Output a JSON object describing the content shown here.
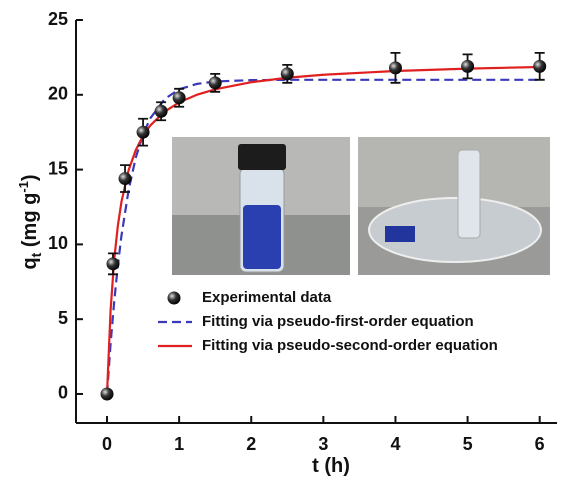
{
  "chart_data": {
    "type": "scatter",
    "xlabel": "t (h)",
    "ylabel": {
      "base": "q",
      "sub": "t",
      "unit": " (mg g",
      "sup": "-1",
      "close": ")"
    },
    "xlim": [
      -0.43,
      6.24
    ],
    "ylim": [
      -1.94,
      25
    ],
    "xticks": [
      0,
      1,
      2,
      3,
      4,
      5,
      6
    ],
    "yticks": [
      0,
      5,
      10,
      15,
      20,
      25
    ],
    "series": [
      {
        "name": "Experimental data",
        "kind": "points",
        "color": "#111111",
        "x": [
          0,
          0.083,
          0.25,
          0.5,
          0.75,
          1,
          1.5,
          2.5,
          4,
          5,
          6
        ],
        "values": [
          0,
          8.7,
          14.4,
          17.5,
          18.9,
          19.8,
          20.8,
          21.4,
          21.8,
          21.9,
          21.9
        ],
        "errors": [
          0,
          0.7,
          0.9,
          0.9,
          0.6,
          0.6,
          0.6,
          0.6,
          1.0,
          0.8,
          0.9
        ]
      },
      {
        "name": "Fitting via pseudo-first-order equation",
        "kind": "dashed",
        "color": "#3a3ab8",
        "x": [
          0,
          0.05,
          0.1,
          0.15,
          0.2,
          0.3,
          0.4,
          0.5,
          0.6,
          0.8,
          1,
          1.25,
          1.5,
          2,
          2.5,
          3,
          4,
          5,
          6
        ],
        "values": [
          0,
          3.38,
          6.19,
          8.57,
          10.57,
          13.65,
          15.82,
          17.35,
          18.43,
          19.72,
          20.37,
          20.73,
          20.89,
          20.98,
          21,
          21,
          21,
          21,
          21
        ]
      },
      {
        "name": "Fitting via pseudo-second-order equation",
        "kind": "solid",
        "color": "#e02020",
        "x": [
          0,
          0.05,
          0.1,
          0.15,
          0.2,
          0.3,
          0.4,
          0.5,
          0.6,
          0.8,
          1,
          1.25,
          1.5,
          2,
          2.5,
          3,
          4,
          5,
          6
        ],
        "values": [
          0,
          5.63,
          9.0,
          11.24,
          12.84,
          14.97,
          16.32,
          17.26,
          17.95,
          18.88,
          19.49,
          20.01,
          20.37,
          20.84,
          21.14,
          21.34,
          21.59,
          21.75,
          21.86
        ]
      }
    ]
  }
}
